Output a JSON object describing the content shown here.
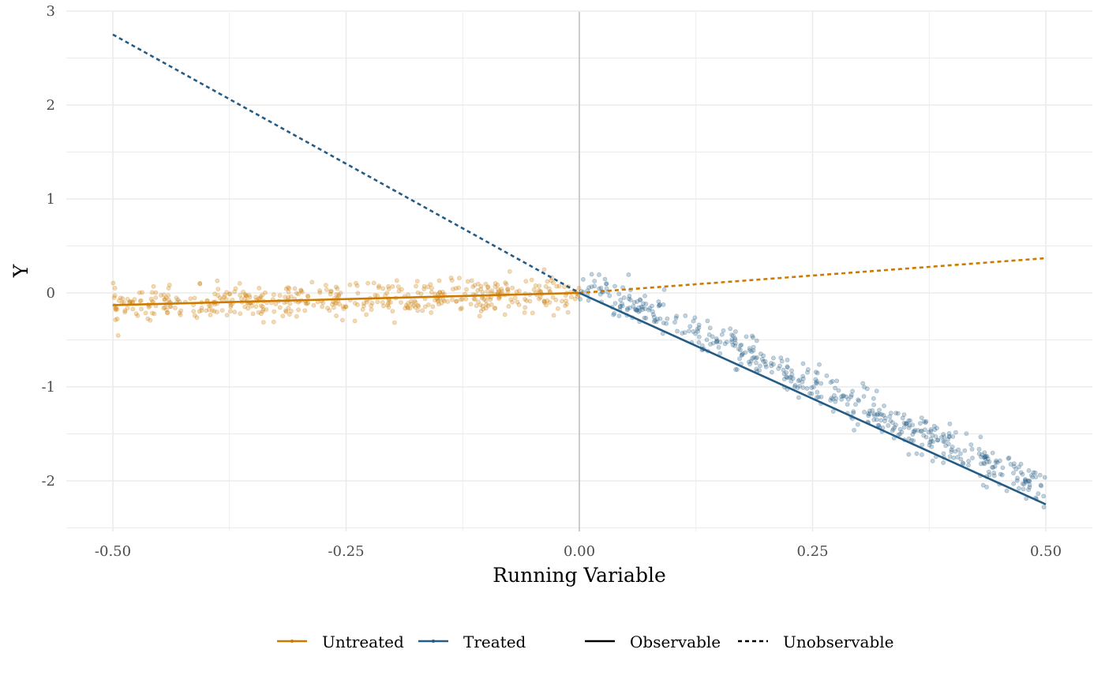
{
  "chart_data": {
    "type": "scatter",
    "title": "",
    "xlabel": "Running Variable",
    "ylabel": "Y",
    "xlim": [
      -0.52,
      0.52
    ],
    "ylim": [
      -2.5,
      3.0
    ],
    "x_ticks": [
      -0.5,
      -0.25,
      0.0,
      0.25,
      0.5
    ],
    "x_tick_labels": [
      "-0.50",
      "-0.25",
      "0.00",
      "0.25",
      "0.50"
    ],
    "y_ticks": [
      -2,
      -1,
      0,
      1,
      2,
      3
    ],
    "y_tick_labels": [
      "-2",
      "-1",
      "0",
      "1",
      "2",
      "3"
    ],
    "grid": true,
    "cutoff": 0.0,
    "colors": {
      "untreated": "#CC7A00",
      "treated": "#245C86",
      "cutoff_line": "#cccccc",
      "grid": "#ebebeb"
    },
    "legend": {
      "position": "bottom",
      "groups": [
        "Untreated",
        "Treated"
      ],
      "line_types": [
        "Observable",
        "Unobservable"
      ]
    },
    "series": [
      {
        "name": "Untreated",
        "type": "scatter",
        "x_range": [
          -0.5,
          0.0
        ],
        "points_approx": 500,
        "trend_intercept": 0.0,
        "trend_slope": 0.28,
        "noise_sd": 0.09
      },
      {
        "name": "Treated",
        "type": "scatter",
        "x_range": [
          0.0,
          0.5
        ],
        "points_approx": 500,
        "trend_intercept": 0.12,
        "trend_slope": -4.4,
        "noise_sd": 0.1
      }
    ],
    "lines": [
      {
        "group": "Untreated",
        "style": "Observable",
        "x": [
          -0.5,
          0.0
        ],
        "y": [
          -0.13,
          0.0
        ]
      },
      {
        "group": "Untreated",
        "style": "Unobservable",
        "x": [
          0.0,
          0.5
        ],
        "y": [
          0.0,
          0.37
        ]
      },
      {
        "group": "Treated",
        "style": "Unobservable",
        "x": [
          -0.5,
          0.0
        ],
        "y": [
          2.75,
          0.0
        ]
      },
      {
        "group": "Treated",
        "style": "Observable",
        "x": [
          0.0,
          0.5
        ],
        "y": [
          0.0,
          -2.25
        ]
      }
    ]
  }
}
